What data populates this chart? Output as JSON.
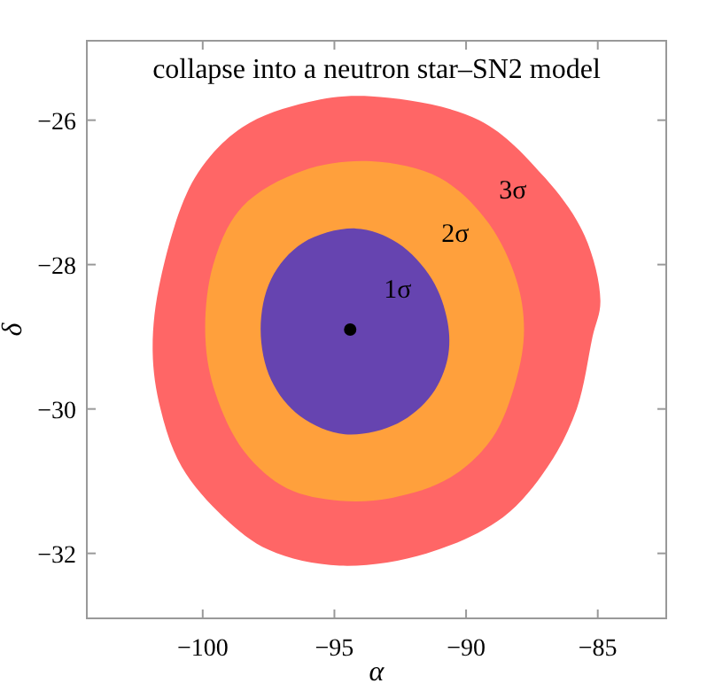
{
  "chart_data": {
    "type": "area",
    "title": "collapse into a neutron star–SN2 model",
    "xlabel": "α",
    "ylabel": "δ",
    "xlim": [
      -104.4,
      -82.4
    ],
    "ylim": [
      -32.9,
      -24.9
    ],
    "xticks": [
      -100,
      -95,
      -90,
      -85
    ],
    "yticks": [
      -32,
      -30,
      -28,
      -26
    ],
    "series": [
      {
        "name": "3σ",
        "color": "#ff6666",
        "x": [
          -93.6,
          -89.5,
          -87.0,
          -85.5,
          -84.9,
          -85.2,
          -85.8,
          -86.9,
          -88.6,
          -91.5,
          -94.8,
          -97.5,
          -99.2,
          -100.8,
          -101.6,
          -101.9,
          -101.6,
          -100.3,
          -98.5,
          -96.0
        ],
        "values": [
          -25.67,
          -26.0,
          -26.8,
          -27.6,
          -28.5,
          -29.0,
          -30.0,
          -30.8,
          -31.5,
          -32.0,
          -32.17,
          -31.95,
          -31.5,
          -30.8,
          -30.0,
          -29.2,
          -28.2,
          -26.8,
          -26.1,
          -25.75
        ]
      },
      {
        "name": "2σ",
        "color": "#ffa03c",
        "x": [
          -93.6,
          -91.0,
          -89.2,
          -88.1,
          -87.8,
          -88.1,
          -89.0,
          -90.6,
          -92.8,
          -94.8,
          -96.8,
          -98.4,
          -99.5,
          -99.9,
          -99.6,
          -98.5,
          -96.2
        ],
        "values": [
          -26.57,
          -26.8,
          -27.4,
          -28.2,
          -28.9,
          -29.6,
          -30.4,
          -30.95,
          -31.23,
          -31.27,
          -31.1,
          -30.6,
          -29.8,
          -29.0,
          -28.0,
          -27.2,
          -26.7
        ]
      },
      {
        "name": "1σ",
        "color": "#6644b0",
        "x": [
          -94.2,
          -92.6,
          -91.3,
          -90.7,
          -90.7,
          -91.3,
          -92.6,
          -94.6,
          -96.3,
          -97.4,
          -97.8,
          -97.4,
          -96.2
        ],
        "values": [
          -27.5,
          -27.7,
          -28.2,
          -28.8,
          -29.3,
          -29.8,
          -30.2,
          -30.35,
          -30.1,
          -29.6,
          -28.9,
          -28.2,
          -27.7
        ]
      },
      {
        "type": "scatter",
        "color": "#000000",
        "marker": "circle",
        "x": [
          -94.4
        ],
        "values": [
          -28.9
        ]
      }
    ]
  }
}
